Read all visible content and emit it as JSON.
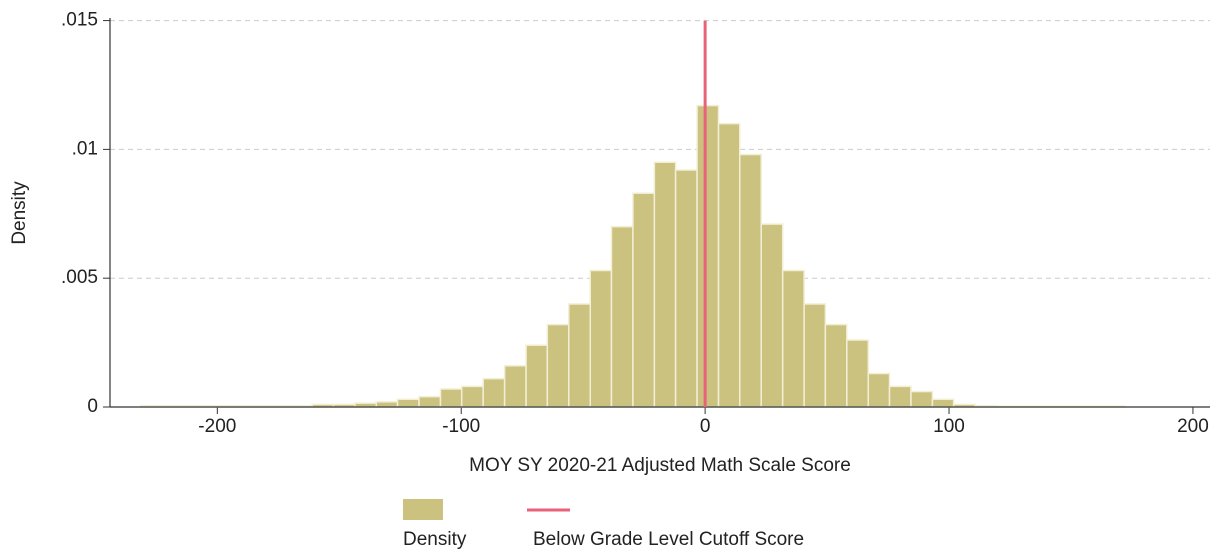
{
  "chart_data": {
    "type": "histogram",
    "xlabel": "MOY SY 2020-21 Adjusted Math Scale Score",
    "ylabel": "Density",
    "bins": [
      -231.3,
      -222.5,
      -213.8,
      -205.0,
      -196.2,
      -187.5,
      -178.7,
      -169.9,
      -161.1,
      -152.4,
      -143.6,
      -134.8,
      -126.1,
      -117.3,
      -108.5,
      -99.8,
      -91.0,
      -82.2,
      -73.4,
      -64.7,
      -55.9,
      -47.1,
      -38.4,
      -29.6,
      -20.8,
      -12.1,
      -3.3,
      5.5,
      14.2,
      23.0,
      31.8,
      40.6,
      49.3,
      58.1,
      66.9,
      75.6,
      84.4,
      93.2,
      101.9,
      110.7,
      119.5,
      128.3,
      137.0,
      145.8,
      154.6,
      163.3,
      172.1
    ],
    "series": [
      {
        "name": "Density",
        "color": "#cbc27f",
        "values": [
          5e-05,
          5e-05,
          5e-05,
          5e-05,
          5e-05,
          5e-05,
          5e-05,
          5e-05,
          0.0001,
          0.0001,
          0.00015,
          0.0002,
          0.0003,
          0.0004,
          0.0007,
          0.0008,
          0.0011,
          0.0016,
          0.0024,
          0.0032,
          0.004,
          0.0053,
          0.007,
          0.0083,
          0.0095,
          0.0092,
          0.0117,
          0.011,
          0.0098,
          0.0071,
          0.0053,
          0.004,
          0.0032,
          0.0026,
          0.0013,
          0.0008,
          0.0006,
          0.0003,
          0.0001,
          5e-05,
          3e-05,
          3e-05,
          3e-05,
          3e-05,
          3e-05,
          3e-05
        ]
      }
    ],
    "reference_line": {
      "name": "Below Grade Level Cutoff Score",
      "color": "#e8637a",
      "x": 0,
      "y_top": 0.015
    },
    "xlim": [
      -244,
      207
    ],
    "xticks": [
      -200,
      -100,
      0,
      100,
      200
    ],
    "ylim": [
      0,
      0.0151
    ],
    "yticks": [
      0,
      {
        "value": 0.005,
        "label": ".005"
      },
      {
        "value": 0.01,
        "label": ".01"
      },
      {
        "value": 0.015,
        "label": ".015"
      }
    ],
    "grid": true
  }
}
